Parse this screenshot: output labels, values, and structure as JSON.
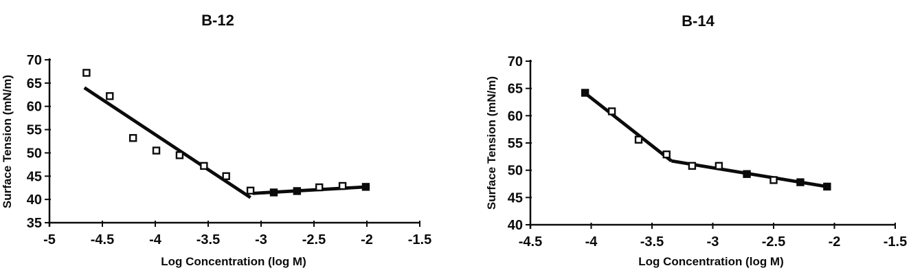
{
  "figure": {
    "background": "#ffffff",
    "ink": "#0b0b0b"
  },
  "chart_data": [
    {
      "type": "scatter",
      "title": "B-12",
      "xlabel": "Log Concentration (log M)",
      "ylabel": "Surface Tension (mN/m)",
      "xlim": [
        -5,
        -1.5
      ],
      "ylim": [
        35,
        70
      ],
      "xticks": [
        "-5",
        "-4.5",
        "-4",
        "-3.5",
        "-3",
        "-2.5",
        "-2",
        "-1.5"
      ],
      "yticks": [
        "35",
        "40",
        "45",
        "50",
        "55",
        "60",
        "65",
        "70"
      ],
      "grid": false,
      "legend": "none",
      "marker": "square",
      "points": [
        {
          "x": -4.65,
          "y": 67.2,
          "filled": false
        },
        {
          "x": -4.43,
          "y": 62.2,
          "filled": false
        },
        {
          "x": -4.21,
          "y": 53.2,
          "filled": false
        },
        {
          "x": -3.99,
          "y": 50.5,
          "filled": false
        },
        {
          "x": -3.77,
          "y": 49.5,
          "filled": false
        },
        {
          "x": -3.54,
          "y": 47.2,
          "filled": false
        },
        {
          "x": -3.33,
          "y": 45.0,
          "filled": false
        },
        {
          "x": -3.1,
          "y": 41.9,
          "filled": false
        },
        {
          "x": -2.88,
          "y": 41.5,
          "filled": true
        },
        {
          "x": -2.66,
          "y": 41.8,
          "filled": true
        },
        {
          "x": -2.45,
          "y": 42.6,
          "filled": false
        },
        {
          "x": -2.23,
          "y": 42.9,
          "filled": false
        },
        {
          "x": -2.01,
          "y": 42.7,
          "filled": true
        }
      ],
      "trend_lines": [
        {
          "x1": -4.67,
          "y1": 64.0,
          "x2": -3.1,
          "y2": 40.4
        },
        {
          "x1": -3.08,
          "y1": 41.3,
          "x2": -2.0,
          "y2": 42.7
        }
      ]
    },
    {
      "type": "scatter",
      "title": "B-14",
      "xlabel": "Log Concentration (log M)",
      "ylabel": "Surface Tension (mN/m)",
      "xlim": [
        -4.5,
        -1.5
      ],
      "ylim": [
        40,
        70
      ],
      "xticks": [
        "-4.5",
        "-4",
        "-3.5",
        "-3",
        "-2.5",
        "-2",
        "-1.5"
      ],
      "yticks": [
        "40",
        "45",
        "50",
        "55",
        "60",
        "65",
        "70"
      ],
      "grid": false,
      "legend": "none",
      "marker": "square",
      "points": [
        {
          "x": -4.05,
          "y": 64.2,
          "filled": true
        },
        {
          "x": -3.83,
          "y": 60.8,
          "filled": false
        },
        {
          "x": -3.61,
          "y": 55.6,
          "filled": false
        },
        {
          "x": -3.38,
          "y": 52.9,
          "filled": false
        },
        {
          "x": -3.17,
          "y": 50.8,
          "filled": false
        },
        {
          "x": -2.95,
          "y": 50.8,
          "filled": false
        },
        {
          "x": -2.72,
          "y": 49.3,
          "filled": true
        },
        {
          "x": -2.5,
          "y": 48.2,
          "filled": false
        },
        {
          "x": -2.28,
          "y": 47.8,
          "filled": true
        },
        {
          "x": -2.06,
          "y": 47.0,
          "filled": true
        }
      ],
      "trend_lines": [
        {
          "x1": -4.06,
          "y1": 64.3,
          "x2": -3.34,
          "y2": 51.7
        },
        {
          "x1": -3.34,
          "y1": 51.7,
          "x2": -2.06,
          "y2": 47.0
        }
      ]
    }
  ]
}
